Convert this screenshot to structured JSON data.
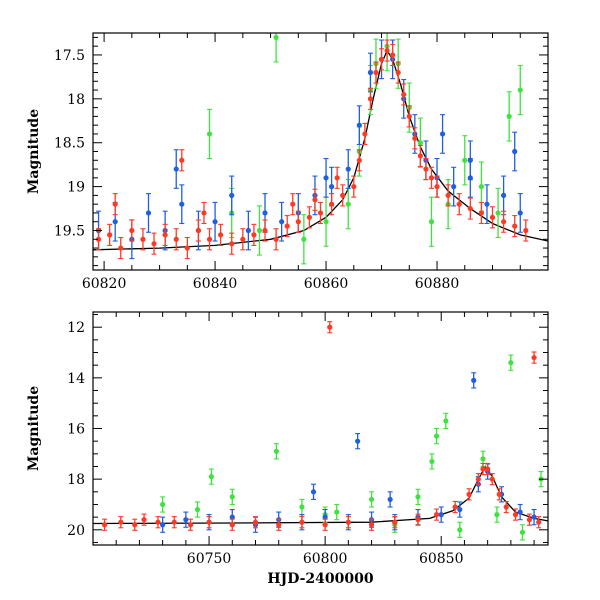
{
  "colors": {
    "blue": "#1f5fe0",
    "green": "#3fe23f",
    "red": "#ff3a24",
    "model": "#000000"
  },
  "chart_data": [
    {
      "type": "scatter",
      "ylabel": "Magnitude",
      "xlabel": "",
      "xlim": [
        60818,
        60900
      ],
      "ylim": [
        19.95,
        17.25
      ],
      "y_inverted": true,
      "x_ticks": [
        60820,
        60840,
        60860,
        60880
      ],
      "y_ticks": [
        17.5,
        18,
        18.5,
        19,
        19.5
      ],
      "series": [
        {
          "color_key": "red",
          "points": [
            [
              60819,
              19.6
            ],
            [
              60821,
              19.55
            ],
            [
              60823,
              19.7
            ],
            [
              60825,
              19.5
            ],
            [
              60827,
              19.6
            ],
            [
              60829,
              19.65
            ],
            [
              60831,
              19.55
            ],
            [
              60833,
              19.6
            ],
            [
              60835,
              19.7
            ],
            [
              60837,
              19.5
            ],
            [
              60839,
              19.6
            ],
            [
              60841,
              19.55
            ],
            [
              60843,
              19.65
            ],
            [
              60845,
              19.6
            ],
            [
              60847,
              19.55
            ],
            [
              60849,
              19.5
            ],
            [
              60851,
              19.6
            ],
            [
              60853,
              19.45
            ],
            [
              60855,
              19.4
            ],
            [
              60857,
              19.35
            ],
            [
              60859,
              19.3
            ],
            [
              60861,
              19.2
            ],
            [
              60863,
              19.1
            ],
            [
              60865,
              19.0
            ],
            [
              60866,
              18.7
            ],
            [
              60867,
              18.4
            ],
            [
              60868,
              18.0
            ],
            [
              60869,
              17.7
            ],
            [
              60870,
              17.55
            ],
            [
              60871,
              17.45
            ],
            [
              60872,
              17.5
            ],
            [
              60873,
              17.7
            ],
            [
              60874,
              17.95
            ],
            [
              60875,
              18.2
            ],
            [
              60876,
              18.45
            ],
            [
              60877,
              18.65
            ],
            [
              60878,
              18.8
            ],
            [
              60879,
              18.9
            ],
            [
              60880,
              19.0
            ],
            [
              60882,
              19.1
            ],
            [
              60884,
              19.2
            ],
            [
              60886,
              19.25
            ],
            [
              60888,
              19.3
            ],
            [
              60890,
              19.35
            ],
            [
              60892,
              19.4
            ],
            [
              60894,
              19.45
            ],
            [
              60896,
              19.5
            ],
            [
              60822,
              19.2
            ],
            [
              60834,
              18.7
            ],
            [
              60838,
              19.3
            ],
            [
              60854,
              19.2
            ],
            [
              60858,
              19.15
            ],
            [
              60862,
              18.9
            ]
          ],
          "errors": 0.12
        },
        {
          "color_key": "blue",
          "points": [
            [
              60819,
              19.5
            ],
            [
              60822,
              19.4
            ],
            [
              60825,
              19.6
            ],
            [
              60828,
              19.3
            ],
            [
              60831,
              19.5
            ],
            [
              60834,
              19.2
            ],
            [
              60837,
              19.5
            ],
            [
              60840,
              19.4
            ],
            [
              60843,
              19.1
            ],
            [
              60846,
              19.5
            ],
            [
              60849,
              19.3
            ],
            [
              60852,
              19.4
            ],
            [
              60855,
              19.3
            ],
            [
              60858,
              19.1
            ],
            [
              60861,
              19.0
            ],
            [
              60864,
              18.8
            ],
            [
              60866,
              18.3
            ],
            [
              60868,
              17.7
            ],
            [
              60870,
              17.55
            ],
            [
              60872,
              17.55
            ],
            [
              60874,
              18.0
            ],
            [
              60876,
              18.4
            ],
            [
              60878,
              18.7
            ],
            [
              60880,
              18.9
            ],
            [
              60883,
              19.0
            ],
            [
              60886,
              18.9
            ],
            [
              60889,
              19.2
            ],
            [
              60892,
              19.1
            ],
            [
              60895,
              19.3
            ],
            [
              60833,
              18.8
            ],
            [
              60860,
              18.9
            ],
            [
              60881,
              18.4
            ],
            [
              60886,
              18.7
            ],
            [
              60894,
              18.6
            ]
          ],
          "errors": 0.22
        },
        {
          "color_key": "green",
          "points": [
            [
              60851,
              17.3
            ],
            [
              60839,
              18.4
            ],
            [
              60843,
              19.3
            ],
            [
              60848,
              19.5
            ],
            [
              60856,
              19.6
            ],
            [
              60860,
              19.4
            ],
            [
              60864,
              19.2
            ],
            [
              60866,
              18.6
            ],
            [
              60868,
              17.9
            ],
            [
              60869,
              17.6
            ],
            [
              60871,
              17.4
            ],
            [
              60873,
              17.6
            ],
            [
              60875,
              18.1
            ],
            [
              60877,
              18.5
            ],
            [
              60879,
              19.4
            ],
            [
              60882,
              19.2
            ],
            [
              60885,
              18.7
            ],
            [
              60888,
              19.0
            ],
            [
              60891,
              19.3
            ],
            [
              60893,
              18.2
            ],
            [
              60895,
              17.9
            ]
          ],
          "errors": 0.28
        }
      ],
      "model_curve": [
        [
          60818,
          19.72
        ],
        [
          60830,
          19.7
        ],
        [
          60840,
          19.67
        ],
        [
          60850,
          19.6
        ],
        [
          60856,
          19.5
        ],
        [
          60860,
          19.35
        ],
        [
          60863,
          19.15
        ],
        [
          60865,
          18.9
        ],
        [
          60867,
          18.45
        ],
        [
          60868.5,
          18.0
        ],
        [
          60870,
          17.6
        ],
        [
          60871,
          17.45
        ],
        [
          60872,
          17.55
        ],
        [
          60873.5,
          17.85
        ],
        [
          60875,
          18.2
        ],
        [
          60877,
          18.55
        ],
        [
          60879,
          18.8
        ],
        [
          60882,
          19.05
        ],
        [
          60886,
          19.25
        ],
        [
          60890,
          19.42
        ],
        [
          60895,
          19.55
        ],
        [
          60900,
          19.62
        ]
      ]
    },
    {
      "type": "scatter",
      "ylabel": "Magnitude",
      "xlabel": "HJD-2400000",
      "xlim": [
        60700,
        60896
      ],
      "ylim": [
        20.6,
        11.4
      ],
      "y_inverted": true,
      "x_ticks": [
        60750,
        60800,
        60850
      ],
      "y_ticks": [
        12,
        14,
        16,
        18,
        20
      ],
      "series": [
        {
          "color_key": "red",
          "points": [
            [
              60705,
              19.8
            ],
            [
              60712,
              19.7
            ],
            [
              60718,
              19.8
            ],
            [
              60722,
              19.6
            ],
            [
              60728,
              19.7
            ],
            [
              60735,
              19.7
            ],
            [
              60742,
              19.8
            ],
            [
              60750,
              19.7
            ],
            [
              60760,
              19.8
            ],
            [
              60770,
              19.7
            ],
            [
              60780,
              19.8
            ],
            [
              60790,
              19.7
            ],
            [
              60800,
              19.8
            ],
            [
              60810,
              19.7
            ],
            [
              60820,
              19.8
            ],
            [
              60830,
              19.7
            ],
            [
              60840,
              19.6
            ],
            [
              60848,
              19.4
            ],
            [
              60856,
              19.1
            ],
            [
              60862,
              18.6
            ],
            [
              60866,
              18.0
            ],
            [
              60868,
              17.6
            ],
            [
              60870,
              17.6
            ],
            [
              60872,
              18.0
            ],
            [
              60875,
              18.6
            ],
            [
              60878,
              19.1
            ],
            [
              60882,
              19.4
            ],
            [
              60888,
              19.6
            ],
            [
              60892,
              19.7
            ],
            [
              60802,
              12.0
            ],
            [
              60890,
              13.2
            ]
          ],
          "errors": 0.22
        },
        {
          "color_key": "blue",
          "points": [
            [
              60730,
              19.8
            ],
            [
              60740,
              19.6
            ],
            [
              60750,
              19.7
            ],
            [
              60760,
              19.5
            ],
            [
              60770,
              19.8
            ],
            [
              60780,
              19.6
            ],
            [
              60790,
              19.7
            ],
            [
              60800,
              19.5
            ],
            [
              60810,
              19.7
            ],
            [
              60820,
              19.6
            ],
            [
              60830,
              19.7
            ],
            [
              60840,
              19.5
            ],
            [
              60850,
              19.4
            ],
            [
              60858,
              19.2
            ],
            [
              60864,
              14.1
            ],
            [
              60814,
              16.5
            ],
            [
              60866,
              18.2
            ],
            [
              60870,
              17.7
            ],
            [
              60876,
              18.6
            ],
            [
              60884,
              19.3
            ],
            [
              60890,
              19.5
            ],
            [
              60795,
              18.5
            ],
            [
              60828,
              18.8
            ]
          ],
          "errors": 0.3
        },
        {
          "color_key": "green",
          "points": [
            [
              60730,
              19.0
            ],
            [
              60745,
              19.2
            ],
            [
              60751,
              17.9
            ],
            [
              60760,
              18.7
            ],
            [
              60779,
              16.9
            ],
            [
              60790,
              19.1
            ],
            [
              60805,
              19.3
            ],
            [
              60820,
              18.8
            ],
            [
              60840,
              18.7
            ],
            [
              60846,
              17.3
            ],
            [
              60852,
              15.7
            ],
            [
              60848,
              16.3
            ],
            [
              60858,
              20.0
            ],
            [
              60868,
              17.2
            ],
            [
              60874,
              19.4
            ],
            [
              60880,
              13.4
            ],
            [
              60885,
              20.1
            ],
            [
              60893,
              18.0
            ],
            [
              60800,
              19.4
            ],
            [
              60830,
              19.8
            ]
          ],
          "errors": 0.3
        }
      ],
      "model_curve": [
        [
          60700,
          19.75
        ],
        [
          60760,
          19.73
        ],
        [
          60820,
          19.7
        ],
        [
          60845,
          19.55
        ],
        [
          60855,
          19.25
        ],
        [
          60862,
          18.75
        ],
        [
          60866,
          18.0
        ],
        [
          60869,
          17.5
        ],
        [
          60872,
          17.9
        ],
        [
          60876,
          18.7
        ],
        [
          60882,
          19.3
        ],
        [
          60890,
          19.55
        ],
        [
          60896,
          19.65
        ]
      ]
    }
  ]
}
